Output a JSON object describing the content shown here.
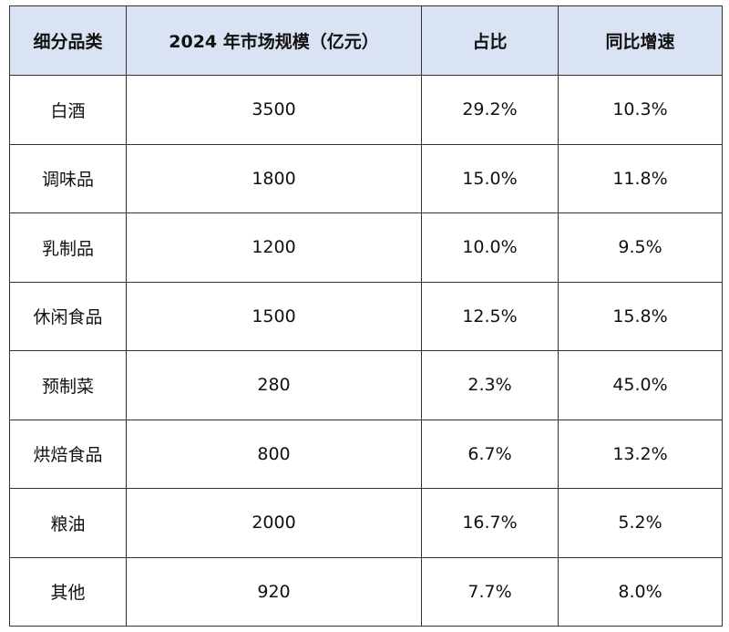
{
  "table": {
    "headers": [
      "细分品类",
      "2024 年市场规模（亿元）",
      "占比",
      "同比增速"
    ],
    "rows": [
      [
        "白酒",
        "3500",
        "29.2%",
        "10.3%"
      ],
      [
        "调味品",
        "1800",
        "15.0%",
        "11.8%"
      ],
      [
        "乳制品",
        "1200",
        "10.0%",
        "9.5%"
      ],
      [
        "休闲食品",
        "1500",
        "12.5%",
        "15.8%"
      ],
      [
        "预制菜",
        "280",
        "2.3%",
        "45.0%"
      ],
      [
        "烘焙食品",
        "800",
        "6.7%",
        "13.2%"
      ],
      [
        "粮油",
        "2000",
        "16.7%",
        "5.2%"
      ],
      [
        "其他",
        "920",
        "7.7%",
        "8.0%"
      ]
    ],
    "header_bg": "#dae3f3"
  }
}
